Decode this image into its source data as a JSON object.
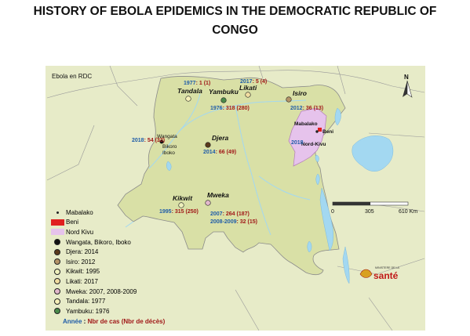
{
  "title": {
    "line1": "HISTORY OF EBOLA EPIDEMICS IN THE DEMOCRATIC REPUBLIC OF",
    "line2": "CONGO"
  },
  "map_title": "Ebola en RDC",
  "colors": {
    "land": "#e7ebc8",
    "drc": "#d9e0a6",
    "water": "#a3d8f1",
    "border": "#8b8b8b",
    "year": "#1f5ca8",
    "cases": "#a01818",
    "nord_kivu": "#e6c3ec",
    "beni": "#e02020"
  },
  "places": {
    "tandala": "Tandala",
    "yambuku": "Yambuku",
    "likati": "Likati",
    "isiro": "Isiro",
    "mabalako": "Mabalako",
    "beni": "Beni",
    "nord_kivu": "Nord-Kivu",
    "djera": "Djera",
    "wangata": "Wangata",
    "bikoro": "Bikoro",
    "iboko": "Iboko",
    "kikwit": "Kikwit",
    "mweka": "Mweka"
  },
  "outbreaks": {
    "tandala": {
      "year": "1977",
      "cases": "1 (1)"
    },
    "yambuku": {
      "year": "1976",
      "cases": "318 (280)"
    },
    "likati": {
      "year": "2017",
      "cases": "5 (4)"
    },
    "isiro": {
      "year": "2012",
      "cases": "36 (13)"
    },
    "nord_kivu": {
      "year": "2018",
      "cases": ""
    },
    "djera": {
      "year": "2014",
      "cases": "66 (49)"
    },
    "wangata": {
      "year": "2018",
      "cases": "54 (33)"
    },
    "kikwit": {
      "year": "1995",
      "cases": "315 (250)"
    },
    "mweka_2007": {
      "year": "2007",
      "cases": "264 (187)"
    },
    "mweka_2008": {
      "year": "2008-2009",
      "cases": "32 (15)"
    }
  },
  "north_label": "N",
  "scale": {
    "ticks": [
      "0",
      "305",
      "610 Km"
    ]
  },
  "logo": {
    "small_text": "MINISTERE DE LA",
    "main_text": "santé"
  },
  "legend": {
    "items": [
      {
        "label": "Mabalako",
        "symbol": "small-dot",
        "color": "#222222"
      },
      {
        "label": "Beni",
        "symbol": "rect",
        "color": "#e02020"
      },
      {
        "label": "Nord Kivu",
        "symbol": "rect",
        "color": "#e6c3ec"
      },
      {
        "label": "Wangata, Bikoro, Iboko",
        "symbol": "dot",
        "color": "#111111"
      },
      {
        "label": "Djera: 2014",
        "symbol": "dot",
        "color": "#5a3a1c"
      },
      {
        "label": "Isiro: 2012",
        "symbol": "dot",
        "color": "#b49468"
      },
      {
        "label": "Kikwit: 1995",
        "symbol": "dot",
        "color": "#eef0bc"
      },
      {
        "label": "Likati: 2017",
        "symbol": "dot",
        "color": "#f0dca0"
      },
      {
        "label": "Mweka: 2007, 2008-2009",
        "symbol": "dot",
        "color": "#e2b8cc"
      },
      {
        "label": "Tandala: 1977",
        "symbol": "dot",
        "color": "#f6f0b8"
      },
      {
        "label": "Yambuku: 1976",
        "symbol": "dot",
        "color": "#4a8a4a"
      }
    ],
    "note_year": "Année",
    "note_sep": " : ",
    "note_cases": "Nbr de cas (Nbr de décès)"
  }
}
